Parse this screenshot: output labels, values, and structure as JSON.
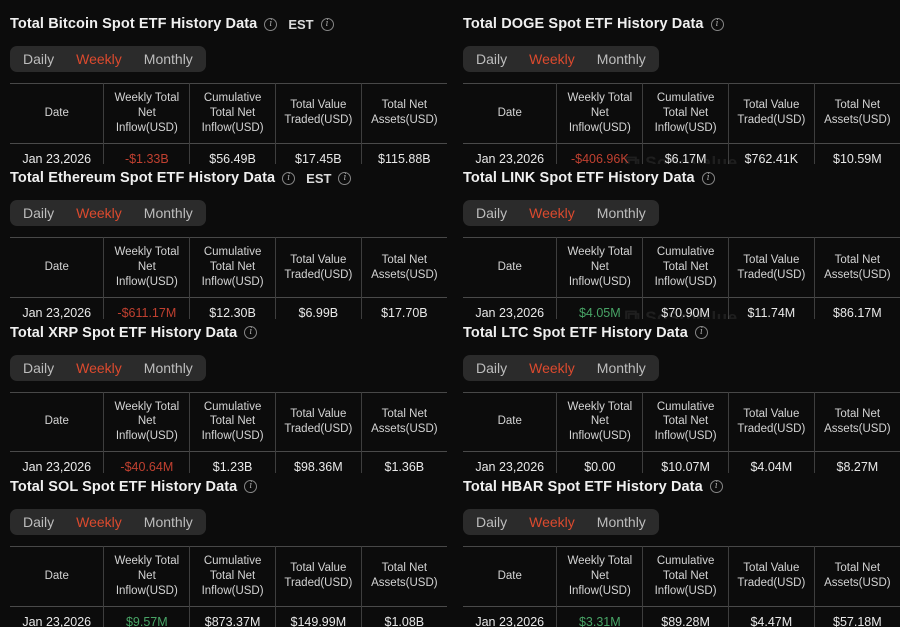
{
  "est_label": "EST",
  "watermark_text": "SoSoValue",
  "icons": {
    "info": "i",
    "watermark_cube": "⧉"
  },
  "colors": {
    "background": "#0c0c0c",
    "active_tab": "#dc4a2e",
    "negative_value": "#c04030",
    "positive_value": "#48a466",
    "table_border": "#3e3e3e"
  },
  "tab_labels": [
    "Daily",
    "Weekly",
    "Monthly"
  ],
  "active_tab": "Weekly",
  "columns": [
    "Date",
    "Weekly Total Net Inflow(USD)",
    "Cumulative Total Net Inflow(USD)",
    "Total Value Traded(USD)",
    "Total Net Assets(USD)"
  ],
  "sections": [
    {
      "title": "Total Bitcoin Spot ETF History Data",
      "show_est": true,
      "show_watermark": false,
      "row": {
        "date": "Jan 23,2026",
        "weekly_net_inflow": "-$1.33B",
        "weekly_trend": "negative",
        "cumulative_net_inflow": "$56.49B",
        "value_traded": "$17.45B",
        "net_assets": "$115.88B"
      }
    },
    {
      "title": "Total DOGE Spot ETF History Data",
      "show_est": false,
      "show_watermark": true,
      "row": {
        "date": "Jan 23,2026",
        "weekly_net_inflow": "-$406.96K",
        "weekly_trend": "negative",
        "cumulative_net_inflow": "$6.17M",
        "value_traded": "$762.41K",
        "net_assets": "$10.59M"
      }
    },
    {
      "title": "Total Ethereum Spot ETF History Data",
      "show_est": true,
      "show_watermark": false,
      "row": {
        "date": "Jan 23,2026",
        "weekly_net_inflow": "-$611.17M",
        "weekly_trend": "negative",
        "cumulative_net_inflow": "$12.30B",
        "value_traded": "$6.99B",
        "net_assets": "$17.70B"
      }
    },
    {
      "title": "Total LINK Spot ETF History Data",
      "show_est": false,
      "show_watermark": true,
      "row": {
        "date": "Jan 23,2026",
        "weekly_net_inflow": "$4.05M",
        "weekly_trend": "positive",
        "cumulative_net_inflow": "$70.90M",
        "value_traded": "$11.74M",
        "net_assets": "$86.17M"
      }
    },
    {
      "title": "Total XRP Spot ETF History Data",
      "show_est": false,
      "show_watermark": false,
      "row": {
        "date": "Jan 23,2026",
        "weekly_net_inflow": "-$40.64M",
        "weekly_trend": "negative",
        "cumulative_net_inflow": "$1.23B",
        "value_traded": "$98.36M",
        "net_assets": "$1.36B"
      }
    },
    {
      "title": "Total LTC Spot ETF History Data",
      "show_est": false,
      "show_watermark": false,
      "row": {
        "date": "Jan 23,2026",
        "weekly_net_inflow": "$0.00",
        "weekly_trend": "neutral",
        "cumulative_net_inflow": "$10.07M",
        "value_traded": "$4.04M",
        "net_assets": "$8.27M"
      }
    },
    {
      "title": "Total SOL Spot ETF History Data",
      "show_est": false,
      "show_watermark": false,
      "row": {
        "date": "Jan 23,2026",
        "weekly_net_inflow": "$9.57M",
        "weekly_trend": "positive",
        "cumulative_net_inflow": "$873.37M",
        "value_traded": "$149.99M",
        "net_assets": "$1.08B"
      }
    },
    {
      "title": "Total HBAR Spot ETF History Data",
      "show_est": false,
      "show_watermark": false,
      "row": {
        "date": "Jan 23,2026",
        "weekly_net_inflow": "$3.31M",
        "weekly_trend": "positive",
        "cumulative_net_inflow": "$89.28M",
        "value_traded": "$4.47M",
        "net_assets": "$57.18M"
      }
    }
  ]
}
